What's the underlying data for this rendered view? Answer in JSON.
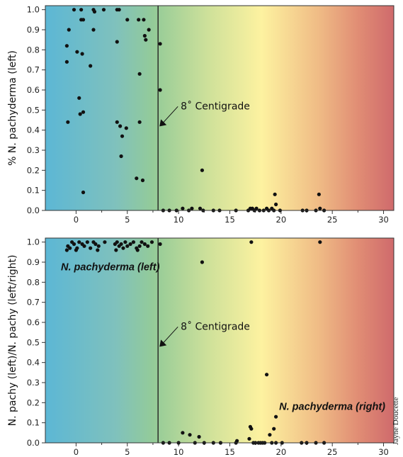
{
  "chart_data": [
    {
      "type": "scatter",
      "ylabel": "% N. pachyderma (left)",
      "xlabel": "",
      "xlim": [
        -3,
        31
      ],
      "ylim": [
        0,
        1.02
      ],
      "x_ticks": [
        0,
        5,
        10,
        15,
        20,
        25,
        30
      ],
      "y_ticks": [
        0.0,
        0.1,
        0.2,
        0.3,
        0.4,
        0.5,
        0.6,
        0.7,
        0.8,
        0.9,
        1.0
      ],
      "background": "temperature gradient: blue (cold) to green, yellow, red (warm)",
      "vertical_line": {
        "x": 8,
        "label": "8˚ Centigrade"
      },
      "points": [
        [
          -0.2,
          1.0
        ],
        [
          0.5,
          1.0
        ],
        [
          2.7,
          1.0
        ],
        [
          1.8,
          0.99
        ],
        [
          1.7,
          1.0
        ],
        [
          4.0,
          1.0
        ],
        [
          4.2,
          1.0
        ],
        [
          0.5,
          0.95
        ],
        [
          0.7,
          0.95
        ],
        [
          5.0,
          0.95
        ],
        [
          6.1,
          0.95
        ],
        [
          6.6,
          0.95
        ],
        [
          -0.7,
          0.9
        ],
        [
          1.7,
          0.9
        ],
        [
          7.1,
          0.9
        ],
        [
          6.7,
          0.87
        ],
        [
          6.8,
          0.85
        ],
        [
          4.0,
          0.84
        ],
        [
          8.2,
          0.83
        ],
        [
          -0.9,
          0.82
        ],
        [
          0.1,
          0.79
        ],
        [
          0.6,
          0.78
        ],
        [
          -0.9,
          0.74
        ],
        [
          1.4,
          0.72
        ],
        [
          6.2,
          0.68
        ],
        [
          8.2,
          0.6
        ],
        [
          0.3,
          0.56
        ],
        [
          0.7,
          0.49
        ],
        [
          0.4,
          0.48
        ],
        [
          -0.8,
          0.44
        ],
        [
          4.0,
          0.44
        ],
        [
          4.3,
          0.42
        ],
        [
          4.9,
          0.41
        ],
        [
          4.5,
          0.37
        ],
        [
          6.2,
          0.44
        ],
        [
          4.4,
          0.27
        ],
        [
          12.3,
          0.2
        ],
        [
          5.9,
          0.16
        ],
        [
          6.5,
          0.15
        ],
        [
          0.7,
          0.09
        ],
        [
          19.4,
          0.08
        ],
        [
          23.7,
          0.08
        ],
        [
          19.5,
          0.03
        ],
        [
          8.5,
          0.0
        ],
        [
          9.1,
          0.0
        ],
        [
          9.8,
          0.0
        ],
        [
          10.4,
          0.01
        ],
        [
          11.0,
          0.0
        ],
        [
          11.3,
          0.01
        ],
        [
          12.1,
          0.01
        ],
        [
          12.4,
          0.0
        ],
        [
          13.4,
          0.0
        ],
        [
          14.0,
          0.0
        ],
        [
          15.6,
          0.0
        ],
        [
          16.8,
          0.0
        ],
        [
          17.0,
          0.01
        ],
        [
          17.2,
          0.01
        ],
        [
          17.4,
          0.0
        ],
        [
          17.6,
          0.01
        ],
        [
          17.9,
          0.0
        ],
        [
          18.3,
          0.0
        ],
        [
          18.6,
          0.01
        ],
        [
          18.8,
          0.0
        ],
        [
          19.1,
          0.01
        ],
        [
          19.3,
          0.0
        ],
        [
          19.9,
          0.0
        ],
        [
          22.1,
          0.0
        ],
        [
          22.5,
          0.0
        ],
        [
          23.4,
          0.0
        ],
        [
          23.8,
          0.01
        ],
        [
          24.2,
          0.0
        ]
      ]
    },
    {
      "type": "scatter",
      "ylabel": "N. pachy (left)/N. pachy (left/right)",
      "xlabel": "",
      "xlim": [
        -3,
        31
      ],
      "ylim": [
        0,
        1.02
      ],
      "x_ticks": [
        0,
        5,
        10,
        15,
        20,
        25,
        30
      ],
      "y_ticks": [
        0.0,
        0.1,
        0.2,
        0.3,
        0.4,
        0.5,
        0.6,
        0.7,
        0.8,
        0.9,
        1.0
      ],
      "background": "temperature gradient: blue (cold) to green, yellow, red (warm)",
      "vertical_line": {
        "x": 8,
        "label": "8˚ Centigrade"
      },
      "annotations": [
        "N. pachyderma (left)",
        "N. pachyderma (right)"
      ],
      "points": [
        [
          -0.8,
          0.98
        ],
        [
          -0.6,
          0.97
        ],
        [
          -0.4,
          1.0
        ],
        [
          -0.2,
          0.99
        ],
        [
          0.1,
          0.97
        ],
        [
          0.3,
          1.0
        ],
        [
          0.6,
          0.99
        ],
        [
          0.8,
          0.98
        ],
        [
          1.1,
          1.0
        ],
        [
          1.4,
          0.97
        ],
        [
          1.7,
          1.0
        ],
        [
          1.9,
          0.99
        ],
        [
          2.2,
          0.98
        ],
        [
          2.8,
          1.0
        ],
        [
          3.8,
          0.99
        ],
        [
          4.0,
          1.0
        ],
        [
          4.2,
          0.98
        ],
        [
          4.4,
          0.99
        ],
        [
          4.6,
          0.97
        ],
        [
          4.8,
          1.0
        ],
        [
          5.0,
          0.98
        ],
        [
          5.3,
          0.99
        ],
        [
          5.6,
          1.0
        ],
        [
          5.9,
          0.97
        ],
        [
          6.2,
          0.98
        ],
        [
          6.4,
          1.0
        ],
        [
          6.7,
          0.99
        ],
        [
          7.0,
          0.98
        ],
        [
          7.4,
          1.0
        ],
        [
          8.2,
          0.99
        ],
        [
          -0.9,
          0.96
        ],
        [
          0.0,
          0.96
        ],
        [
          2.1,
          0.96
        ],
        [
          3.9,
          0.96
        ],
        [
          6.0,
          0.96
        ],
        [
          12.3,
          0.9
        ],
        [
          17.1,
          1.0
        ],
        [
          23.8,
          1.0
        ],
        [
          18.6,
          0.34
        ],
        [
          19.5,
          0.13
        ],
        [
          17.0,
          0.08
        ],
        [
          17.1,
          0.07
        ],
        [
          19.3,
          0.07
        ],
        [
          10.4,
          0.05
        ],
        [
          11.1,
          0.04
        ],
        [
          12.0,
          0.03
        ],
        [
          18.9,
          0.04
        ],
        [
          15.7,
          0.01
        ],
        [
          16.9,
          0.02
        ],
        [
          8.5,
          0.0
        ],
        [
          9.1,
          0.0
        ],
        [
          10.0,
          0.0
        ],
        [
          11.6,
          0.0
        ],
        [
          12.5,
          0.0
        ],
        [
          13.4,
          0.0
        ],
        [
          14.1,
          0.0
        ],
        [
          15.6,
          0.0
        ],
        [
          17.3,
          0.0
        ],
        [
          17.5,
          0.0
        ],
        [
          17.8,
          0.0
        ],
        [
          18.0,
          0.0
        ],
        [
          18.2,
          0.0
        ],
        [
          18.4,
          0.0
        ],
        [
          19.1,
          0.0
        ],
        [
          19.5,
          0.0
        ],
        [
          20.1,
          0.0
        ],
        [
          22.0,
          0.0
        ],
        [
          22.5,
          0.0
        ],
        [
          23.4,
          0.0
        ],
        [
          24.2,
          0.0
        ]
      ]
    }
  ],
  "credit": "Jayne Doucette",
  "colors": {
    "cold": "#5fb8d4",
    "cool": "#8cc7a3",
    "green": "#a6d08c",
    "yellow": "#fbf19e",
    "warm": "#e79c76",
    "hot": "#cf6a6c",
    "marker": "#111111"
  }
}
